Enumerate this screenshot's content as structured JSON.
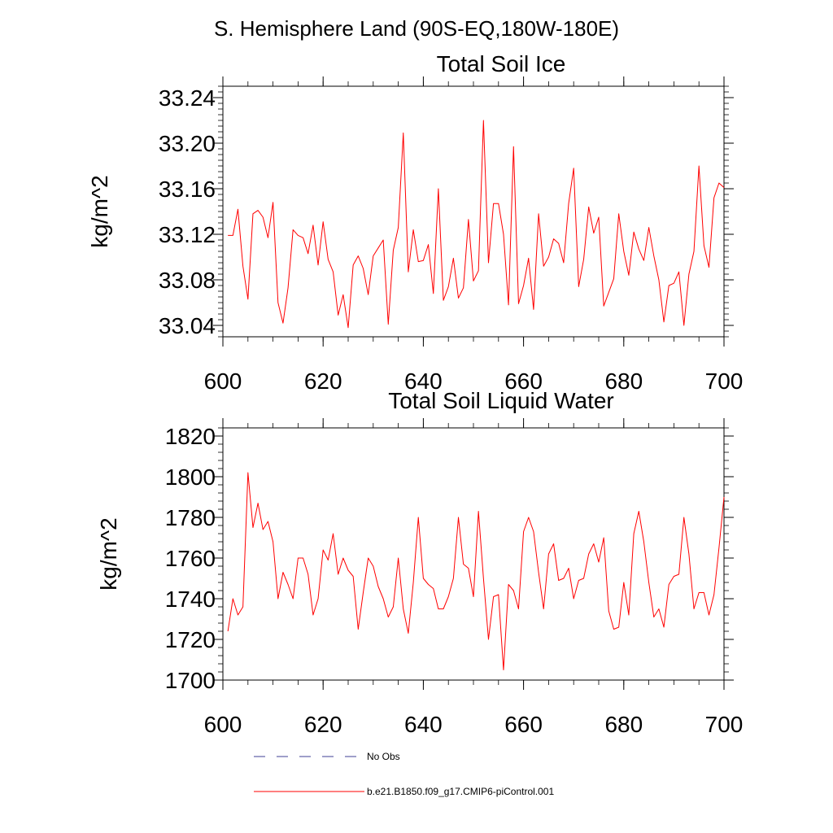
{
  "page_title": "S. Hemisphere Land (90S-EQ,180W-180E)",
  "legend": {
    "items": [
      {
        "label": "No Obs",
        "color": "#6666aa",
        "dash": true
      },
      {
        "label": "b.e21.B1850.f09_g17.CMIP6-piControl.001",
        "color": "#ff0000",
        "dash": false
      }
    ]
  },
  "chart_data": [
    {
      "type": "line",
      "title": "Total Soil Ice",
      "xlabel": "",
      "ylabel": "kg/m^2",
      "xlim": [
        600,
        700
      ],
      "ylim": [
        33.03,
        33.25
      ],
      "xticks": [
        600,
        620,
        640,
        660,
        680,
        700
      ],
      "yticks": [
        33.04,
        33.08,
        33.12,
        33.16,
        33.2,
        33.24
      ],
      "ytick_labels": [
        "33.04",
        "33.08",
        "33.12",
        "33.16",
        "33.20",
        "33.24"
      ],
      "line_color": "#ff0000",
      "series": [
        {
          "name": "b.e21.B1850.f09_g17.CMIP6-piControl.001",
          "x_start": 601,
          "values": [
            33.119,
            33.119,
            33.142,
            33.092,
            33.063,
            33.138,
            33.141,
            33.135,
            33.117,
            33.148,
            33.06,
            33.042,
            33.073,
            33.124,
            33.119,
            33.117,
            33.103,
            33.128,
            33.093,
            33.131,
            33.098,
            33.087,
            33.049,
            33.067,
            33.038,
            33.093,
            33.101,
            33.09,
            33.067,
            33.101,
            33.108,
            33.115,
            33.041,
            33.106,
            33.126,
            33.209,
            33.087,
            33.124,
            33.096,
            33.097,
            33.111,
            33.068,
            33.16,
            33.062,
            33.074,
            33.099,
            33.064,
            33.073,
            33.133,
            33.079,
            33.088,
            33.22,
            33.095,
            33.147,
            33.147,
            33.12,
            33.058,
            33.197,
            33.059,
            33.075,
            33.099,
            33.054,
            33.138,
            33.092,
            33.1,
            33.116,
            33.112,
            33.095,
            33.147,
            33.178,
            33.074,
            33.098,
            33.144,
            33.121,
            33.135,
            33.057,
            33.069,
            33.081,
            33.138,
            33.105,
            33.084,
            33.122,
            33.107,
            33.097,
            33.126,
            33.101,
            33.08,
            33.043,
            33.075,
            33.077,
            33.087,
            33.04,
            33.085,
            33.105,
            33.18,
            33.11,
            33.091,
            33.152,
            33.165,
            33.161
          ]
        }
      ]
    },
    {
      "type": "line",
      "title": "Total Soil Liquid Water",
      "xlabel": "",
      "ylabel": "kg/m^2",
      "xlim": [
        600,
        700
      ],
      "ylim": [
        1700,
        1824
      ],
      "xticks": [
        600,
        620,
        640,
        660,
        680,
        700
      ],
      "yticks": [
        1700,
        1720,
        1740,
        1760,
        1780,
        1800,
        1820
      ],
      "ytick_labels": [
        "1700",
        "1720",
        "1740",
        "1760",
        "1780",
        "1800",
        "1820"
      ],
      "line_color": "#ff0000",
      "series": [
        {
          "name": "b.e21.B1850.f09_g17.CMIP6-piControl.001",
          "x_start": 601,
          "values": [
            1724,
            1740,
            1732,
            1736,
            1802,
            1775,
            1787,
            1774,
            1778,
            1768,
            1740,
            1753,
            1747,
            1740,
            1760,
            1760,
            1752,
            1732,
            1740,
            1764,
            1759,
            1772,
            1752,
            1760,
            1754,
            1751,
            1725,
            1743,
            1760,
            1756,
            1746,
            1740,
            1731,
            1736,
            1760,
            1735,
            1723,
            1748,
            1780,
            1750,
            1747,
            1745,
            1735,
            1735,
            1741,
            1750,
            1780,
            1757,
            1755,
            1741,
            1783,
            1750,
            1720,
            1741,
            1742,
            1705,
            1747,
            1744,
            1735,
            1773,
            1780,
            1773,
            1753,
            1735,
            1762,
            1767,
            1749,
            1750,
            1755,
            1740,
            1749,
            1750,
            1762,
            1767,
            1758,
            1770,
            1734,
            1725,
            1726,
            1748,
            1732,
            1772,
            1783,
            1768,
            1748,
            1731,
            1735,
            1726,
            1747,
            1751,
            1752,
            1780,
            1762,
            1735,
            1743,
            1743,
            1732,
            1742,
            1765,
            1790
          ]
        }
      ]
    }
  ]
}
